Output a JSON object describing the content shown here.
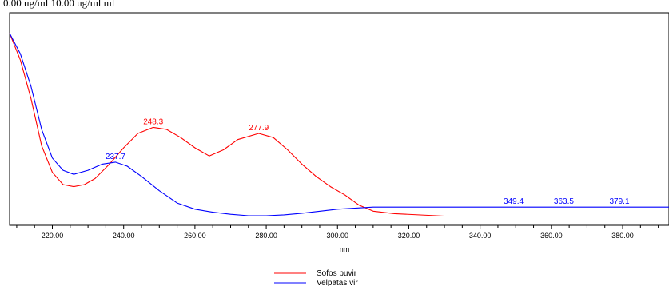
{
  "top_caption": "0.00 ug/ml    10.00 ug/ml    ml",
  "chart_data": {
    "type": "line",
    "title": "",
    "xlabel": "nm",
    "ylabel": "",
    "xlim": [
      208,
      393
    ],
    "ylim": [
      0,
      1
    ],
    "grid": false,
    "legend_position": "bottom-center",
    "x_ticks": [
      220,
      240,
      260,
      280,
      300,
      320,
      340,
      360,
      380
    ],
    "x_tick_labels": [
      "220.00",
      "240.00",
      "260.00",
      "280.00",
      "300.00",
      "320.00",
      "340.00",
      "360.00",
      "380.00"
    ],
    "series": [
      {
        "name": "Sofos buvir",
        "color": "#ff0000",
        "x": [
          208,
          211,
          214,
          217,
          220,
          223,
          226,
          229,
          232,
          236,
          240,
          244,
          248.3,
          252,
          256,
          260,
          264,
          268,
          272,
          277.9,
          282,
          286,
          290,
          294,
          298,
          302,
          306,
          310,
          316,
          330,
          350,
          370,
          393
        ],
        "y": [
          0.9,
          0.77,
          0.58,
          0.35,
          0.22,
          0.16,
          0.15,
          0.16,
          0.19,
          0.26,
          0.34,
          0.41,
          0.44,
          0.43,
          0.39,
          0.34,
          0.3,
          0.33,
          0.38,
          0.41,
          0.39,
          0.33,
          0.26,
          0.2,
          0.15,
          0.11,
          0.06,
          0.03,
          0.018,
          0.006,
          0.006,
          0.006,
          0.006
        ]
      },
      {
        "name": "Velpatas vir",
        "color": "#0000ff",
        "x": [
          208,
          211,
          214,
          217,
          220,
          223,
          226,
          230,
          234,
          237.7,
          241,
          245,
          250,
          255,
          260,
          265,
          270,
          275,
          280,
          285,
          290,
          300,
          310,
          330,
          349.4,
          363.5,
          379.1,
          393
        ],
        "y": [
          0.9,
          0.8,
          0.64,
          0.43,
          0.29,
          0.23,
          0.21,
          0.23,
          0.26,
          0.27,
          0.25,
          0.2,
          0.13,
          0.07,
          0.04,
          0.025,
          0.015,
          0.008,
          0.008,
          0.012,
          0.02,
          0.04,
          0.05,
          0.05,
          0.05,
          0.05,
          0.05,
          0.05
        ]
      }
    ],
    "annotations": [
      {
        "text": "248.3",
        "x": 248.3,
        "y": 0.44,
        "color": "#ff0000"
      },
      {
        "text": "277.9",
        "x": 277.9,
        "y": 0.41,
        "color": "#ff0000"
      },
      {
        "text": "237.7",
        "x": 237.7,
        "y": 0.27,
        "color": "#0000ff"
      },
      {
        "text": "349.4",
        "x": 349.4,
        "y": 0.05,
        "color": "#0000ff"
      },
      {
        "text": "363.5",
        "x": 363.5,
        "y": 0.05,
        "color": "#0000ff"
      },
      {
        "text": "379.1",
        "x": 379.1,
        "y": 0.05,
        "color": "#0000ff"
      }
    ]
  }
}
